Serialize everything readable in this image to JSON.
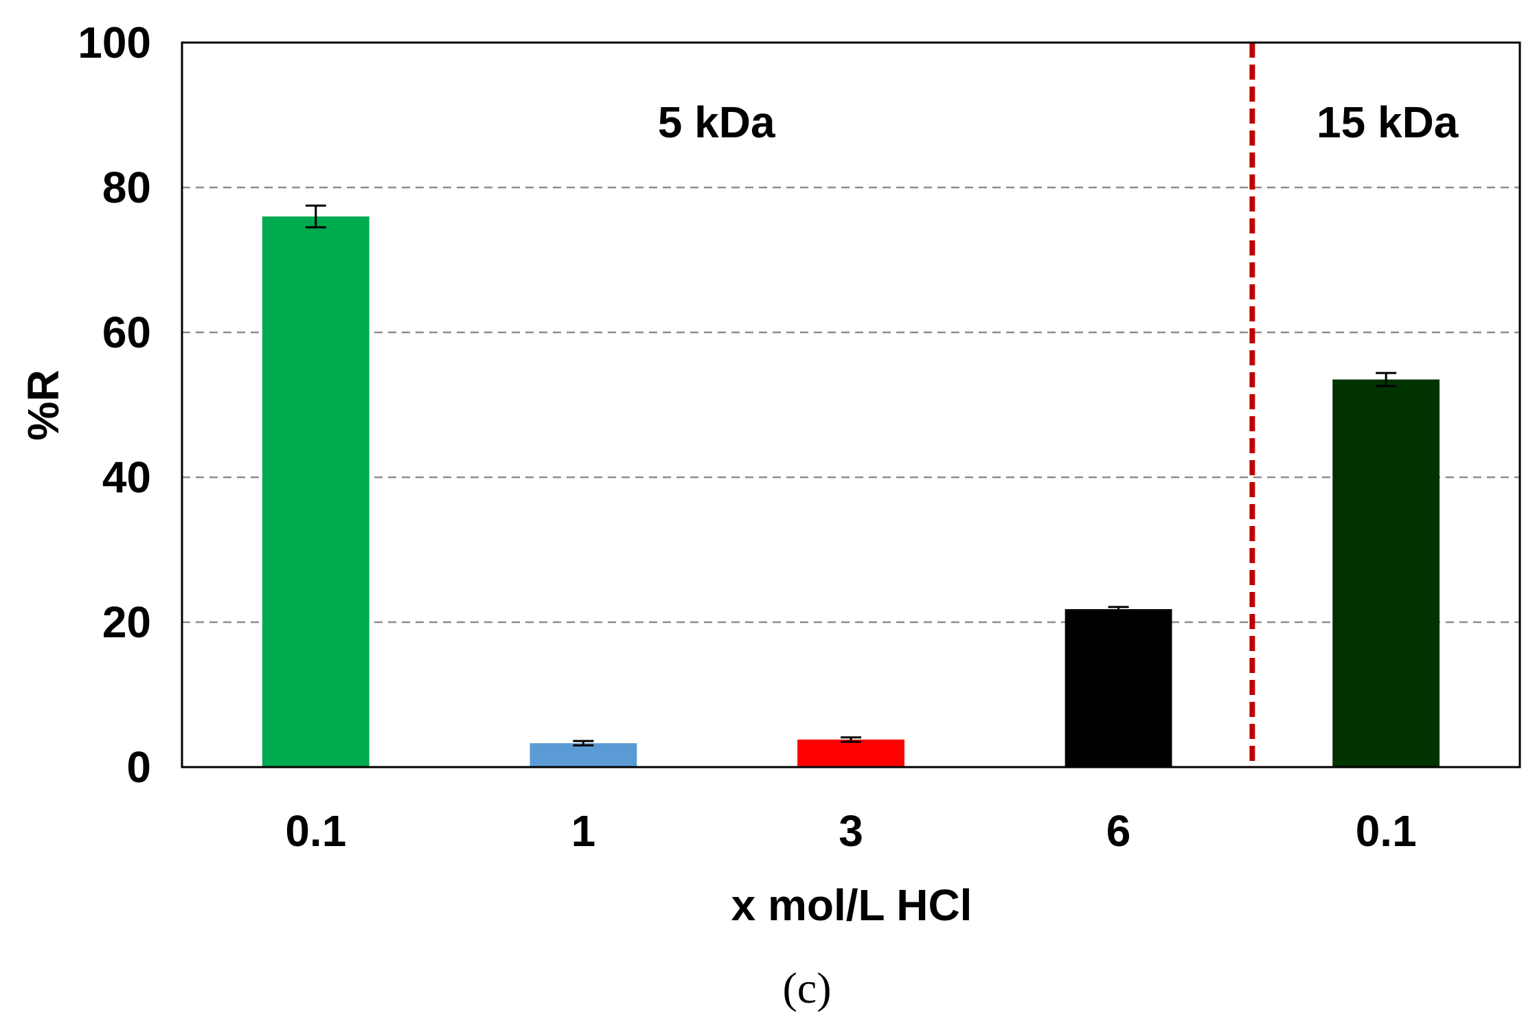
{
  "chart_data": {
    "type": "bar",
    "categories": [
      "0.1",
      "1",
      "3",
      "6",
      "0.1"
    ],
    "values": [
      76,
      3.3,
      3.8,
      21.8,
      53.5
    ],
    "errors": [
      1.5,
      0.3,
      0.3,
      0.3,
      0.9
    ],
    "bar_colors": [
      "#00aa4f",
      "#5b9bd5",
      "#ff0000",
      "#000000",
      "#003300"
    ],
    "xlabel": "x mol/L HCl",
    "ylabel": "%R",
    "ylim": [
      0,
      100
    ],
    "yticks": [
      0,
      20,
      40,
      60,
      80,
      100
    ],
    "gridlines": [
      20,
      40,
      60,
      80
    ],
    "grid": true,
    "grid_style": "dashed",
    "separator": {
      "after_index": 3,
      "color": "#c00000",
      "style": "dashed"
    },
    "annotations": [
      {
        "text": "5 kDa",
        "group": "left"
      },
      {
        "text": "15 kDa",
        "group": "right"
      }
    ]
  },
  "caption": "(c)"
}
